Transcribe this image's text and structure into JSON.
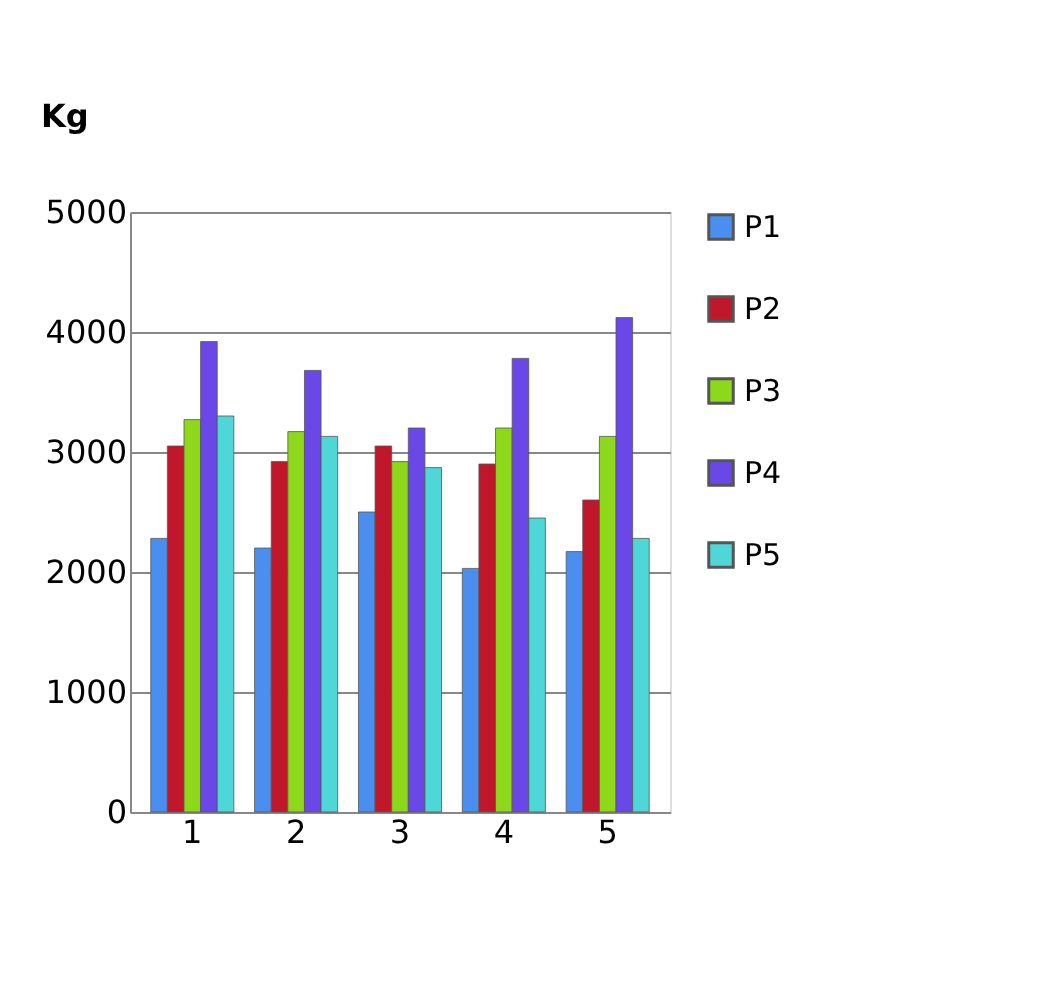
{
  "chart_data": {
    "type": "bar",
    "ylabel": "Kg",
    "categories": [
      "1",
      "2",
      "3",
      "4",
      "5"
    ],
    "series": [
      {
        "name": "P1",
        "color": "#4a8ff0",
        "values": [
          2280,
          2200,
          2500,
          2030,
          2170
        ]
      },
      {
        "name": "P2",
        "color": "#c0182a",
        "values": [
          3050,
          2920,
          3050,
          2900,
          2600
        ]
      },
      {
        "name": "P3",
        "color": "#8ed81c",
        "values": [
          3270,
          3170,
          2920,
          3200,
          3130
        ]
      },
      {
        "name": "P4",
        "color": "#6a48e8",
        "values": [
          3920,
          3680,
          3200,
          3780,
          4120
        ]
      },
      {
        "name": "P5",
        "color": "#4fd6d6",
        "values": [
          3300,
          3130,
          2870,
          2450,
          2280
        ]
      }
    ],
    "ylim": [
      0,
      5000
    ],
    "yticks": [
      0,
      1000,
      2000,
      3000,
      4000,
      5000
    ],
    "grid": "y",
    "legend": "right"
  }
}
